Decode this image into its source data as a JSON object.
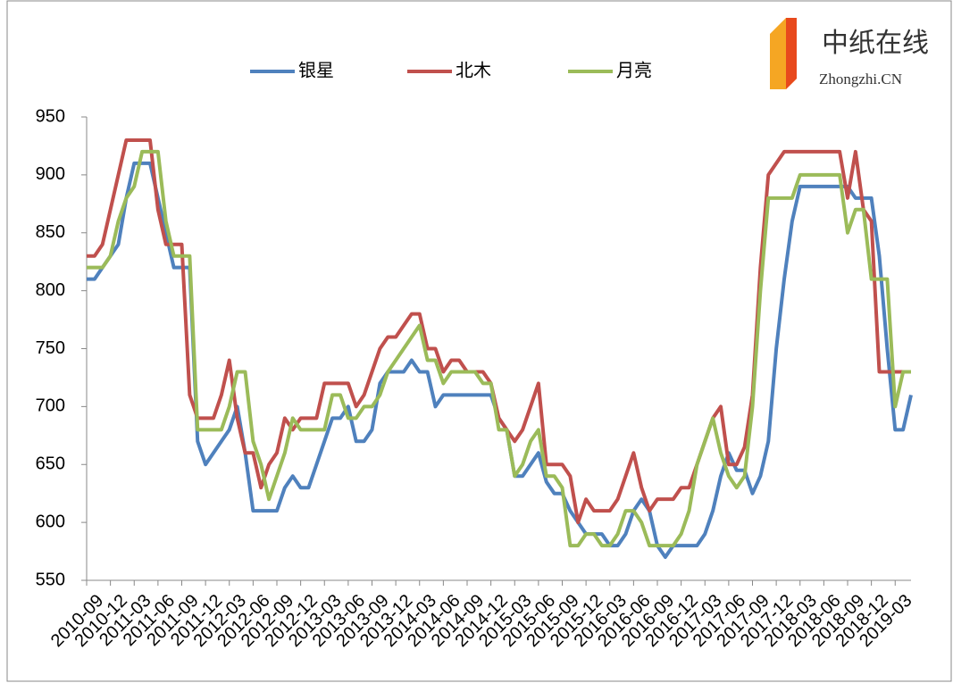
{
  "chart_data": {
    "type": "line",
    "logo_text": [
      "中纸在线",
      "Zhongzhi.CN"
    ],
    "categories": [
      "2010-09",
      null,
      null,
      "2010-12",
      null,
      null,
      "2011-03",
      null,
      null,
      "2011-06",
      null,
      null,
      "2011-09",
      null,
      null,
      "2011-12",
      null,
      null,
      "2012-03",
      null,
      null,
      "2012-06",
      null,
      null,
      "2012-09",
      null,
      null,
      "2012-12",
      null,
      null,
      "2013-03",
      null,
      null,
      "2013-06",
      null,
      null,
      "2013-09",
      null,
      null,
      "2013-12",
      null,
      null,
      "2014-03",
      null,
      null,
      "2014-06",
      null,
      null,
      "2014-09",
      null,
      null,
      "2014-12",
      null,
      null,
      "2015-03",
      null,
      null,
      "2015-06",
      null,
      null,
      "2015-09",
      null,
      null,
      "2015-12",
      null,
      null,
      "2016-03",
      null,
      null,
      "2016-06",
      null,
      null,
      "2016-09",
      null,
      null,
      "2016-12",
      null,
      null,
      "2017-03",
      null,
      null,
      "2017-06",
      null,
      null,
      "2017-09",
      null,
      null,
      "2017-12",
      null,
      null,
      "2018-03",
      null,
      null,
      "2018-06",
      null,
      null,
      "2018-09",
      null,
      null,
      "2018-12",
      null,
      null,
      "2019-03",
      null,
      null
    ],
    "series": [
      {
        "name": "银星",
        "color": "#4f81bd",
        "values": [
          810,
          810,
          820,
          830,
          840,
          880,
          910,
          910,
          910,
          880,
          850,
          820,
          820,
          820,
          670,
          650,
          660,
          670,
          680,
          700,
          660,
          610,
          610,
          610,
          610,
          630,
          640,
          630,
          630,
          650,
          670,
          690,
          690,
          700,
          670,
          670,
          680,
          720,
          730,
          730,
          730,
          740,
          730,
          730,
          700,
          710,
          710,
          710,
          710,
          710,
          710,
          710,
          690,
          680,
          640,
          640,
          650,
          660,
          635,
          625,
          625,
          610,
          600,
          590,
          590,
          590,
          580,
          580,
          590,
          610,
          620,
          610,
          580,
          570,
          580,
          580,
          580,
          580,
          590,
          610,
          640,
          660,
          645,
          645,
          625,
          640,
          670,
          750,
          810,
          860,
          890,
          890,
          890,
          890,
          890,
          890,
          890,
          880,
          880,
          880,
          830,
          750,
          680,
          680,
          710
        ]
      },
      {
        "name": "北木",
        "color": "#c0504d",
        "values": [
          830,
          830,
          840,
          870,
          900,
          930,
          930,
          930,
          930,
          870,
          840,
          840,
          840,
          710,
          690,
          690,
          690,
          710,
          740,
          690,
          660,
          660,
          630,
          650,
          660,
          690,
          680,
          690,
          690,
          690,
          720,
          720,
          720,
          720,
          700,
          710,
          730,
          750,
          760,
          760,
          770,
          780,
          780,
          750,
          750,
          730,
          740,
          740,
          730,
          730,
          730,
          720,
          690,
          680,
          670,
          680,
          700,
          720,
          650,
          650,
          650,
          640,
          600,
          620,
          610,
          610,
          610,
          620,
          640,
          660,
          630,
          610,
          620,
          620,
          620,
          630,
          630,
          650,
          670,
          690,
          700,
          650,
          650,
          665,
          710,
          820,
          900,
          910,
          920,
          920,
          920,
          920,
          920,
          920,
          920,
          920,
          880,
          920,
          870,
          860,
          730,
          730,
          730,
          730,
          730
        ]
      },
      {
        "name": "月亮",
        "color": "#9bbb59",
        "values": [
          820,
          820,
          820,
          830,
          860,
          880,
          890,
          920,
          920,
          920,
          860,
          830,
          830,
          830,
          680,
          680,
          680,
          680,
          700,
          730,
          730,
          670,
          650,
          620,
          640,
          660,
          690,
          680,
          680,
          680,
          680,
          710,
          710,
          690,
          690,
          700,
          700,
          710,
          730,
          740,
          750,
          760,
          770,
          740,
          740,
          720,
          730,
          730,
          730,
          730,
          720,
          720,
          680,
          680,
          640,
          650,
          670,
          680,
          640,
          640,
          630,
          580,
          580,
          590,
          590,
          580,
          580,
          590,
          610,
          610,
          600,
          580,
          580,
          580,
          580,
          590,
          610,
          650,
          670,
          690,
          660,
          640,
          630,
          640,
          700,
          800,
          880,
          880,
          880,
          880,
          900,
          900,
          900,
          900,
          900,
          900,
          850,
          870,
          870,
          810,
          810,
          810,
          700,
          730,
          730
        ]
      }
    ],
    "ylim": [
      550,
      950
    ],
    "yticks": [
      550,
      600,
      650,
      700,
      750,
      800,
      850,
      900,
      950
    ],
    "grid": false,
    "legend": "top"
  }
}
